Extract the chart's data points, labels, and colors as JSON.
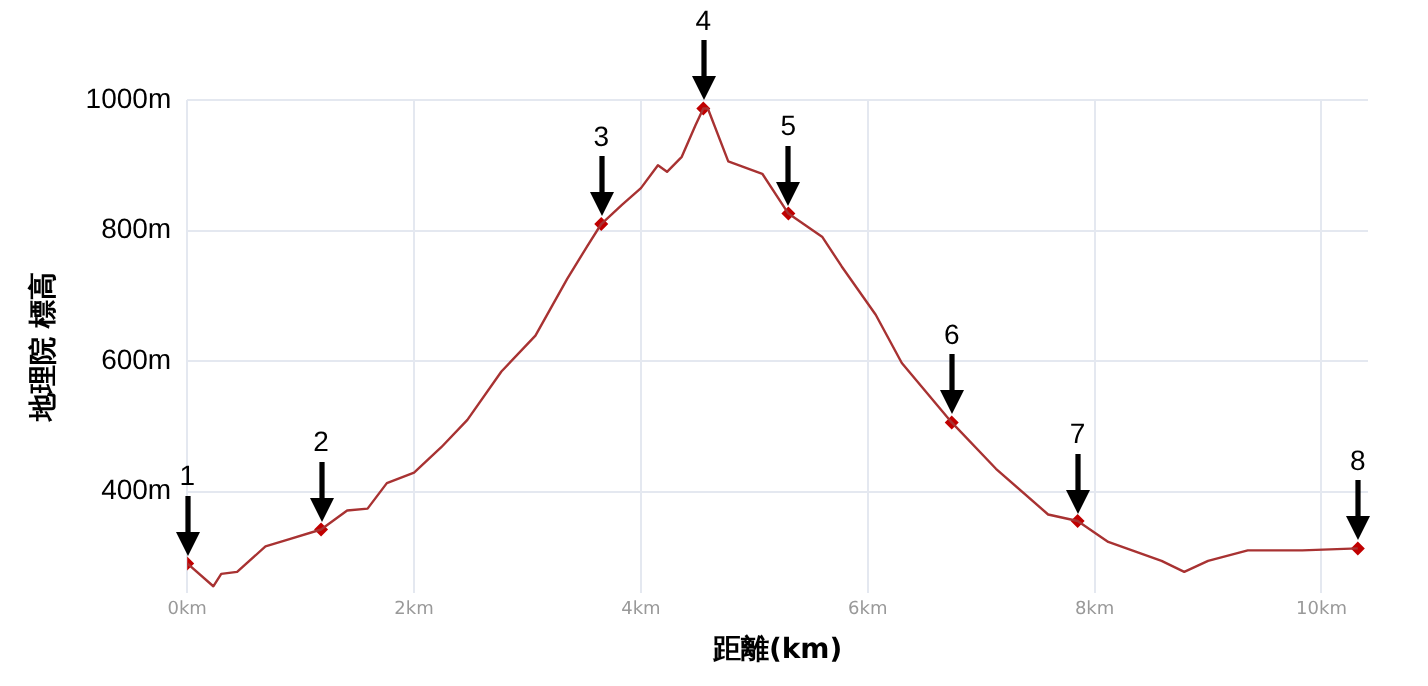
{
  "chart_data": {
    "type": "line",
    "xlabel": "距離(km)",
    "ylabel": "地理院 標高",
    "xlim": [
      0,
      10.41
    ],
    "ylim": [
      245,
      1000
    ],
    "xticks": [
      {
        "value": 0,
        "label": "0km"
      },
      {
        "value": 2,
        "label": "2km"
      },
      {
        "value": 4,
        "label": "4km"
      },
      {
        "value": 6,
        "label": "6km"
      },
      {
        "value": 8,
        "label": "8km"
      },
      {
        "value": 10,
        "label": "10km"
      }
    ],
    "yticks": [
      {
        "value": 400,
        "label": "400m"
      },
      {
        "value": 600,
        "label": "600m"
      },
      {
        "value": 800,
        "label": "800m"
      },
      {
        "value": 1000,
        "label": "1000m"
      }
    ],
    "grid": true,
    "legend": false,
    "series": [
      {
        "type": "line",
        "color": "#a83232",
        "marker": "none",
        "x": [
          0,
          0.23,
          0.3,
          0.44,
          0.69,
          0.88,
          1.18,
          1.41,
          1.59,
          1.76,
          2.0,
          2.24,
          2.47,
          2.77,
          3.07,
          3.35,
          3.53,
          3.65,
          3.83,
          4.0,
          4.15,
          4.23,
          4.36,
          4.48,
          4.55,
          4.59,
          4.77,
          5.07,
          5.3,
          5.6,
          5.77,
          6.07,
          6.3,
          6.74,
          7.13,
          7.59,
          7.85,
          8.12,
          8.59,
          8.79,
          9.0,
          9.35,
          9.83,
          10.32
        ],
        "values": [
          290,
          255,
          274,
          277,
          316,
          326,
          342,
          371,
          374,
          413,
          429,
          468,
          510,
          584,
          639,
          726,
          777,
          810,
          839,
          865,
          900,
          890,
          913,
          961,
          987,
          987,
          906,
          887,
          826,
          790,
          745,
          671,
          597,
          506,
          435,
          365,
          355,
          323,
          294,
          277,
          294,
          310,
          310,
          313
        ]
      },
      {
        "type": "scatter",
        "color": "#c00000",
        "marker": "diamond",
        "x": [
          0,
          1.18,
          3.65,
          4.55,
          5.3,
          6.74,
          7.85,
          10.32
        ],
        "values": [
          290,
          342,
          810,
          987,
          826,
          506,
          355,
          313
        ]
      }
    ],
    "annotations": [
      {
        "text": "1",
        "x": 0,
        "y": 290
      },
      {
        "text": "2",
        "x": 1.18,
        "y": 342
      },
      {
        "text": "3",
        "x": 3.65,
        "y": 810
      },
      {
        "text": "4",
        "x": 4.55,
        "y": 987
      },
      {
        "text": "5",
        "x": 5.3,
        "y": 826
      },
      {
        "text": "6",
        "x": 6.74,
        "y": 506
      },
      {
        "text": "7",
        "x": 7.85,
        "y": 355
      },
      {
        "text": "8",
        "x": 10.32,
        "y": 313
      }
    ]
  }
}
